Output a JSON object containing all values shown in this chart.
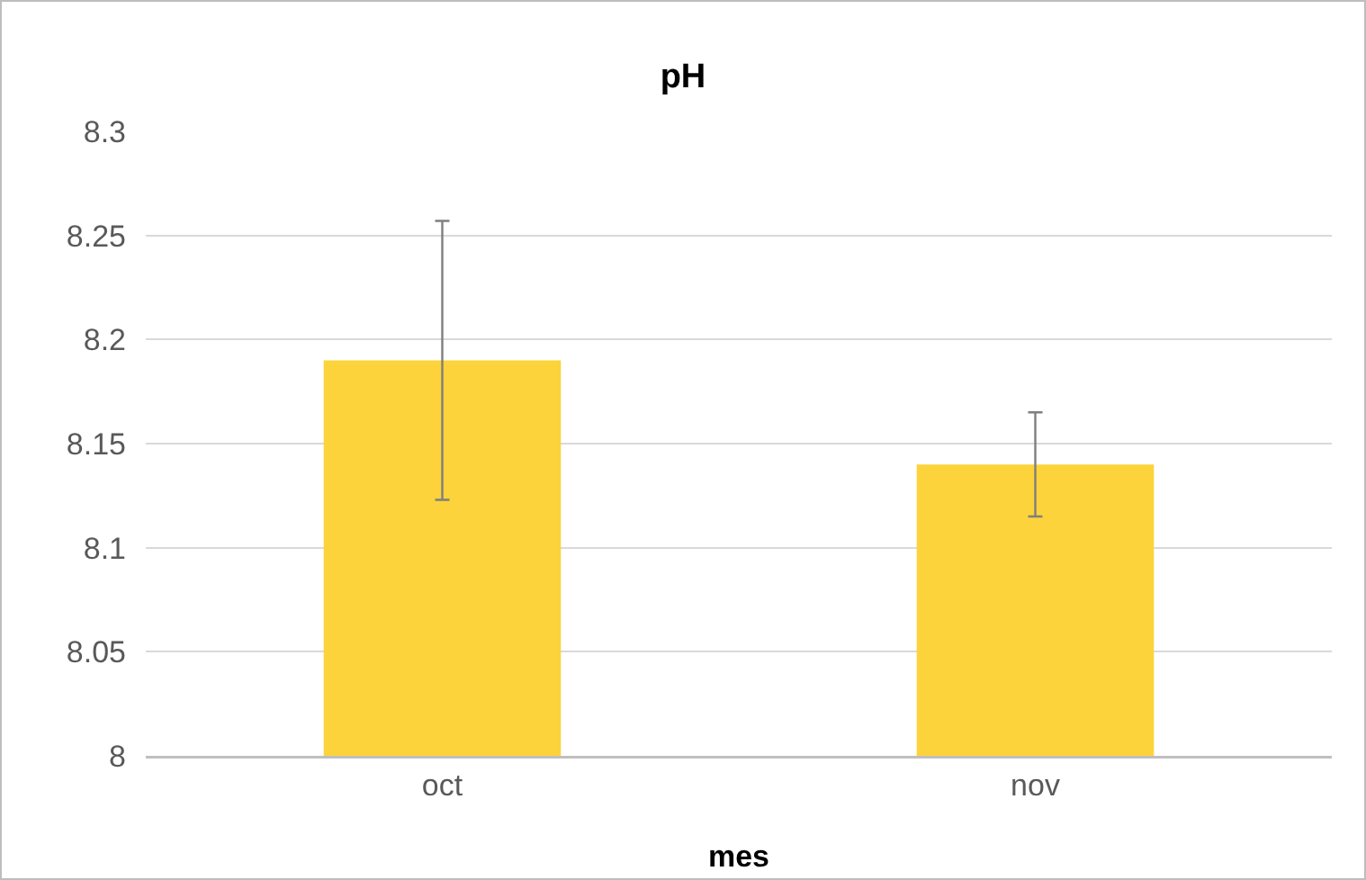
{
  "chart_data": {
    "type": "bar",
    "title": "pH",
    "xlabel": "mes",
    "categories": [
      "oct",
      "nov"
    ],
    "values": [
      8.19,
      8.14
    ],
    "errors": [
      [
        8.123,
        8.257
      ],
      [
        8.115,
        8.165
      ]
    ],
    "color": "#fcd33a",
    "ylim": [
      8,
      8.3
    ],
    "yticks": [
      8,
      8.05,
      8.1,
      8.15,
      8.2,
      8.25,
      8.3
    ],
    "grid": "y",
    "legend": false
  }
}
